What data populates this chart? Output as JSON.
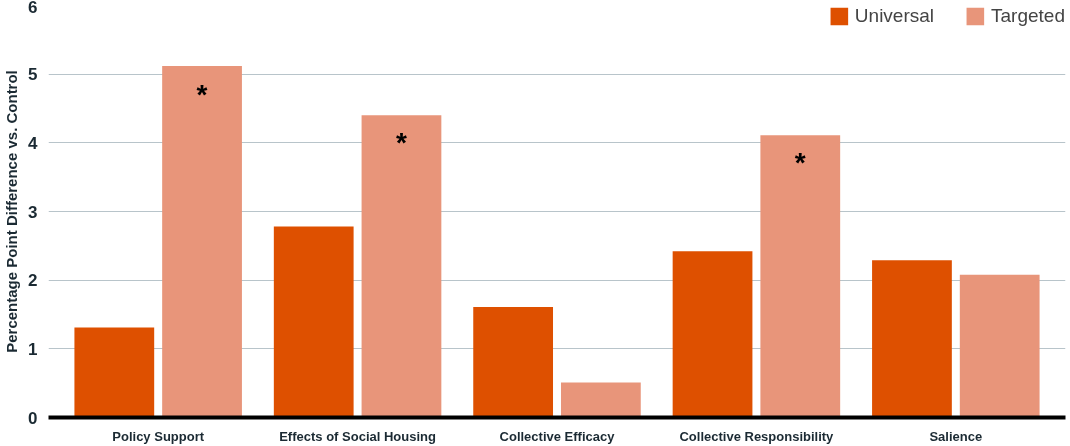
{
  "chart_data": {
    "type": "bar",
    "ylabel": "Percentage Point Difference vs. Control",
    "categories": [
      "Policy Support",
      "Effects of Social Housing",
      "Collective Efficacy",
      "Collective Responsibility",
      "Salience"
    ],
    "series": [
      {
        "name": "Universal",
        "color": "#de5000",
        "values": [
          1.31,
          2.78,
          1.61,
          2.42,
          2.29
        ]
      },
      {
        "name": "Targeted",
        "color": "#e8957a",
        "values": [
          5.12,
          4.4,
          0.51,
          4.11,
          2.08
        ]
      }
    ],
    "ylim": [
      0,
      6
    ],
    "yticks": [
      0,
      1,
      2,
      3,
      4,
      5,
      6
    ],
    "grid": "y",
    "legend": "top right",
    "annotations": [
      {
        "text": "*",
        "x": "Policy Support",
        "y": 4.7
      },
      {
        "text": "*",
        "x": "Effects of Social Housing",
        "y": 4.0
      },
      {
        "text": "*",
        "x": "Collective Responsibility",
        "y": 3.72
      }
    ]
  }
}
